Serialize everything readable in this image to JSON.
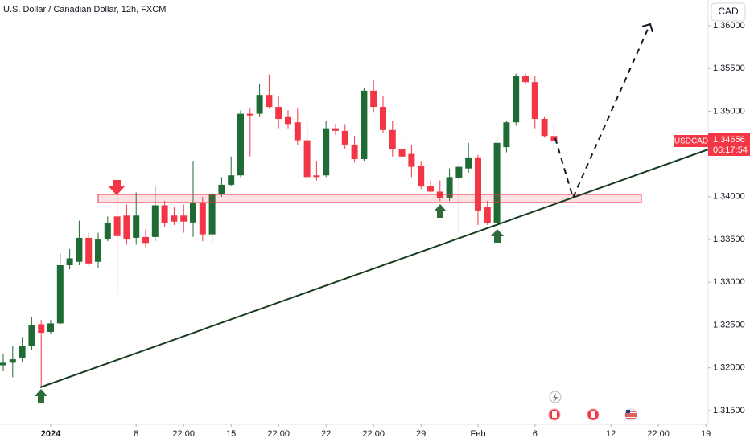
{
  "title": "U.S. Dollar / Canadian Dollar, 12h, FXCM",
  "currency": "CAD",
  "chart_data": {
    "type": "candlestick",
    "symbol": "USDCAD",
    "countdown": "06:17:54",
    "up_color": "#1f6b35",
    "down_color": "#f23645",
    "grid": false,
    "x": [
      0,
      1,
      2,
      3,
      4,
      5,
      6,
      7,
      8,
      9,
      10,
      11,
      12,
      13,
      14,
      15,
      16,
      17,
      18,
      19,
      20,
      21,
      22,
      23,
      24,
      25,
      26,
      27,
      28,
      29,
      30,
      31,
      32,
      33,
      34,
      35,
      36,
      37,
      38,
      39,
      40,
      41,
      42,
      43,
      44,
      45,
      46,
      47,
      48,
      49,
      50,
      51,
      52,
      53,
      54,
      55,
      56,
      57,
      58
    ],
    "open": [
      1.3203,
      1.3206,
      1.3212,
      1.3226,
      1.3251,
      1.3242,
      1.3252,
      1.332,
      1.3324,
      1.3352,
      1.3324,
      1.335,
      1.3377,
      1.3378,
      1.3352,
      1.3353,
      1.3353,
      1.339,
      1.3378,
      1.3378,
      1.337,
      1.3393,
      1.3356,
      1.3403,
      1.3414,
      1.3425,
      1.3497,
      1.3497,
      1.3519,
      1.3505,
      1.3494,
      1.3487,
      1.3466,
      1.3425,
      1.3425,
      1.348,
      1.3477,
      1.3461,
      1.3444,
      1.3524,
      1.3505,
      1.3478,
      1.3456,
      1.345,
      1.3436,
      1.3412,
      1.3406,
      1.3399,
      1.3422,
      1.3433,
      1.3446,
      1.3388,
      1.3369,
      1.3458,
      1.3487,
      1.3541,
      1.3534,
      1.3491,
      1.3471
    ],
    "high": [
      1.3217,
      1.3226,
      1.3236,
      1.3259,
      1.3256,
      1.3256,
      1.3334,
      1.3339,
      1.3372,
      1.3358,
      1.3358,
      1.3377,
      1.34,
      1.3391,
      1.3405,
      1.3362,
      1.3412,
      1.3395,
      1.3388,
      1.3391,
      1.3442,
      1.34,
      1.3407,
      1.3423,
      1.3447,
      1.3501,
      1.3503,
      1.3532,
      1.3543,
      1.3518,
      1.3501,
      1.3503,
      1.3489,
      1.3442,
      1.3489,
      1.3485,
      1.3485,
      1.3471,
      1.3527,
      1.3536,
      1.3518,
      1.3489,
      1.3466,
      1.3461,
      1.3442,
      1.3419,
      1.3419,
      1.3433,
      1.3442,
      1.3463,
      1.3449,
      1.3395,
      1.3469,
      1.3489,
      1.3544,
      1.3544,
      1.3541,
      1.3494,
      1.3485
    ],
    "low": [
      1.3196,
      1.3189,
      1.3207,
      1.3221,
      1.3177,
      1.324,
      1.325,
      1.3315,
      1.332,
      1.332,
      1.3317,
      1.3348,
      1.3287,
      1.3344,
      1.3344,
      1.3341,
      1.3348,
      1.3365,
      1.3367,
      1.3358,
      1.3353,
      1.3348,
      1.3344,
      1.34,
      1.3412,
      1.3423,
      1.3447,
      1.3494,
      1.3503,
      1.348,
      1.348,
      1.3461,
      1.3422,
      1.3419,
      1.3423,
      1.3472,
      1.3456,
      1.344,
      1.3442,
      1.3499,
      1.3475,
      1.3447,
      1.3438,
      1.3423,
      1.3409,
      1.3405,
      1.3395,
      1.3395,
      1.3358,
      1.3428,
      1.3367,
      1.3367,
      1.3365,
      1.3452,
      1.3483,
      1.3532,
      1.348,
      1.3469,
      1.3456
    ],
    "close": [
      1.3206,
      1.321,
      1.3226,
      1.325,
      1.3241,
      1.3252,
      1.332,
      1.3328,
      1.3352,
      1.3322,
      1.335,
      1.3369,
      1.3354,
      1.335,
      1.3378,
      1.3346,
      1.339,
      1.3369,
      1.3371,
      1.3371,
      1.3393,
      1.3356,
      1.3403,
      1.3414,
      1.3425,
      1.3497,
      1.3495,
      1.3519,
      1.3505,
      1.3491,
      1.3485,
      1.3466,
      1.3423,
      1.3423,
      1.348,
      1.3477,
      1.3461,
      1.3444,
      1.3524,
      1.3505,
      1.3478,
      1.3456,
      1.3447,
      1.3435,
      1.3412,
      1.3406,
      1.3399,
      1.3423,
      1.3435,
      1.3446,
      1.3384,
      1.3369,
      1.3463,
      1.3487,
      1.3541,
      1.3534,
      1.3491,
      1.3471,
      1.34656
    ],
    "xlim": [
      -0.34,
      74.24
    ],
    "xticks": [
      {
        "value": 5,
        "label": "2024"
      },
      {
        "value": 14,
        "label": "8"
      },
      {
        "value": 19,
        "label": "22:00"
      },
      {
        "value": 24,
        "label": "15"
      },
      {
        "value": 29,
        "label": "22:00"
      },
      {
        "value": 34,
        "label": "22"
      },
      {
        "value": 39,
        "label": "22:00"
      },
      {
        "value": 44,
        "label": "29"
      },
      {
        "value": 50,
        "label": "Feb"
      },
      {
        "value": 56,
        "label": "6"
      },
      {
        "value": 64,
        "label": "12"
      },
      {
        "value": 69,
        "label": "22:00"
      },
      {
        "value": 74,
        "label": "19"
      }
    ],
    "ylim": [
      1.3134,
      1.363
    ],
    "yticks": [
      {
        "value": 1.315,
        "label": "1.31500"
      },
      {
        "value": 1.32,
        "label": "1.32000"
      },
      {
        "value": 1.325,
        "label": "1.32500"
      },
      {
        "value": 1.33,
        "label": "1.33000"
      },
      {
        "value": 1.335,
        "label": "1.33500"
      },
      {
        "value": 1.34,
        "label": "1.34000"
      },
      {
        "value": 1.35,
        "label": "1.35000"
      },
      {
        "value": 1.355,
        "label": "1.35500"
      },
      {
        "value": 1.36,
        "label": "1.36000"
      }
    ]
  }
}
